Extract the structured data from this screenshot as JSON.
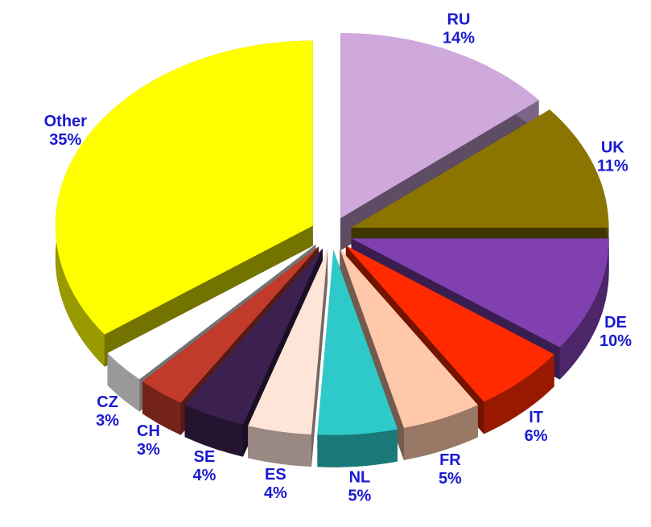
{
  "chart_data": {
    "type": "pie",
    "categories": [
      "RU",
      "UK",
      "DE",
      "IT",
      "FR",
      "NL",
      "ES",
      "SE",
      "CH",
      "CZ",
      "Other"
    ],
    "values": [
      14,
      11,
      10,
      6,
      5,
      5,
      4,
      4,
      3,
      3,
      35
    ],
    "value_labels": [
      "14%",
      "11%",
      "10%",
      "6%",
      "5%",
      "5%",
      "4%",
      "4%",
      "3%",
      "3%",
      "35%"
    ],
    "colors": [
      "#cfa8dc",
      "#8b7500",
      "#8040b0",
      "#ff2a00",
      "#ffc8aa",
      "#2ecaca",
      "#ffe4d8",
      "#3c2150",
      "#c23a2a",
      "#ffffff",
      "#ffff00"
    ]
  }
}
